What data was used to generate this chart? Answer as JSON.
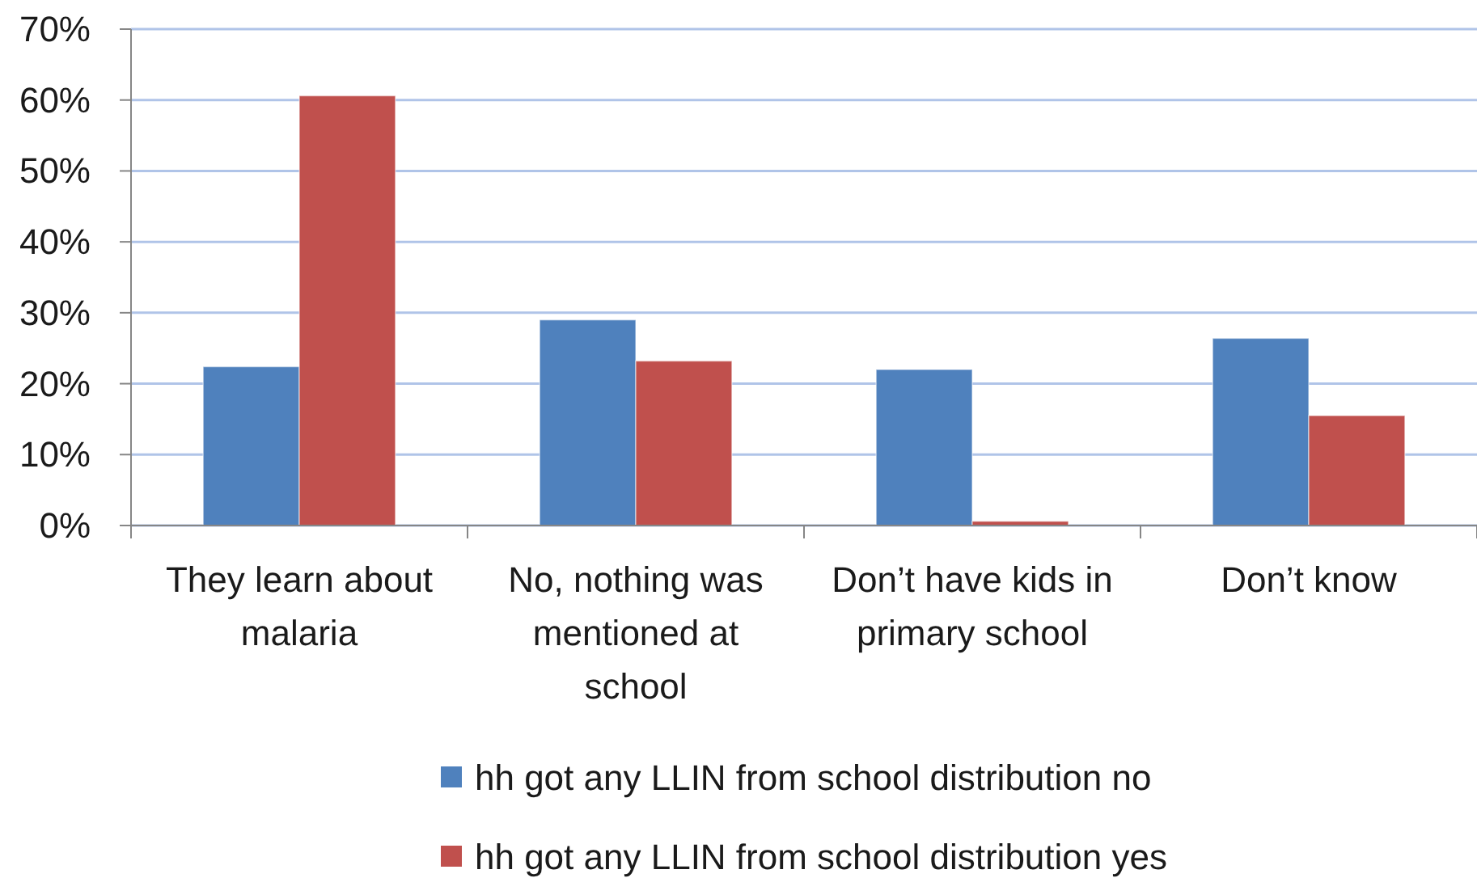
{
  "chart_data": {
    "type": "bar",
    "categories": [
      "They learn about malaria",
      "No, nothing was mentioned at school",
      "Don’t have kids in primary school",
      "Don’t know"
    ],
    "series": [
      {
        "name": "hh got any LLIN from school distribution no",
        "color": "#4f81bd",
        "values": [
          22.4,
          29.0,
          22.0,
          26.4
        ]
      },
      {
        "name": "hh got any LLIN from school distribution yes",
        "color": "#c0504d",
        "values": [
          60.6,
          23.2,
          0.6,
          15.5
        ]
      }
    ],
    "ylim": [
      0,
      70
    ],
    "yticks": [
      {
        "value": 0,
        "label": "0%"
      },
      {
        "value": 10,
        "label": "10%"
      },
      {
        "value": 20,
        "label": "20%"
      },
      {
        "value": 30,
        "label": "30%"
      },
      {
        "value": 40,
        "label": "40%"
      },
      {
        "value": 50,
        "label": "50%"
      },
      {
        "value": 60,
        "label": "60%"
      },
      {
        "value": 70,
        "label": "70%"
      }
    ],
    "grid": "y",
    "legend": "bottom"
  }
}
